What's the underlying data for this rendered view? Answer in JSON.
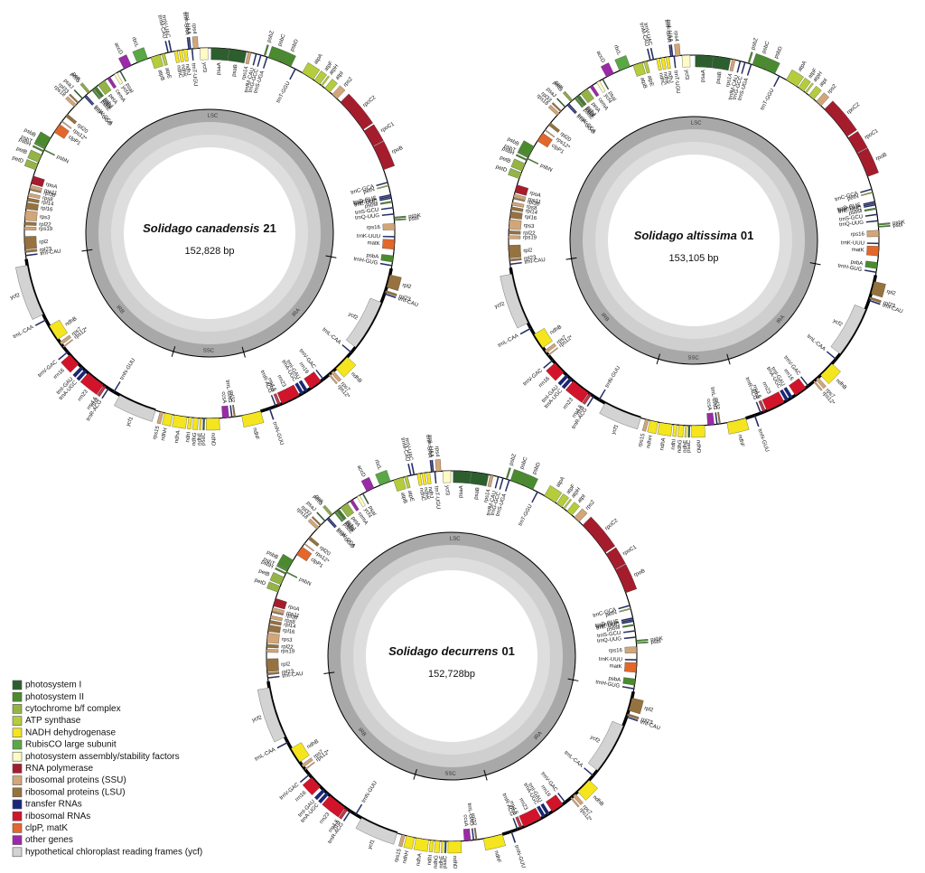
{
  "maps": [
    {
      "species": "Solidago canadensis",
      "accession": "21",
      "length": {
        "value": 152828,
        "label": "152,828 bp"
      }
    },
    {
      "species": "Solidago altissima",
      "accession": "01",
      "length": {
        "value": 153105,
        "label": "153,105 bp"
      }
    },
    {
      "species": "Solidago decurrens",
      "accession": "01",
      "length": {
        "value": 152728,
        "label": "152,728bp"
      }
    }
  ],
  "regions": [
    {
      "name": "LSC",
      "start": 111220,
      "end": 42875,
      "bold": false
    },
    {
      "name": "IRA",
      "start": 42875,
      "end": 69620,
      "bold": true
    },
    {
      "name": "SSC",
      "start": 69620,
      "end": 83627,
      "bold": false
    },
    {
      "name": "IRB",
      "start": 83627,
      "end": 111220,
      "bold": true
    }
  ],
  "genes": [
    {
      "name": "psaA",
      "start": 212,
      "end": 2547,
      "outer": false,
      "color": "#2c5f2d"
    },
    {
      "name": "psaB",
      "start": 2600,
      "end": 4882,
      "outer": false,
      "color": "#2c5f2d"
    },
    {
      "name": "rps14",
      "start": 5094,
      "end": 5519,
      "outer": false,
      "color": "#d2a679"
    },
    {
      "name": "trnfM-CAU",
      "start": 6155,
      "end": 6230,
      "outer": false,
      "color": "#19267a"
    },
    {
      "name": "trnG-GCC",
      "start": 6792,
      "end": 6870,
      "outer": false,
      "color": "#19267a"
    },
    {
      "name": "psbZ",
      "start": 7217,
      "end": 7429,
      "outer": true,
      "color": "#4b8b2f"
    },
    {
      "name": "trnS-UGA",
      "start": 7641,
      "end": 7730,
      "outer": false,
      "color": "#19267a"
    },
    {
      "name": "psbC",
      "start": 7853,
      "end": 9551,
      "outer": true,
      "color": "#4b8b2f"
    },
    {
      "name": "psbD",
      "start": 9600,
      "end": 11037,
      "outer": true,
      "color": "#4b8b2f"
    },
    {
      "name": "trnT-GGU",
      "start": 11674,
      "end": 11750,
      "outer": false,
      "color": "#19267a"
    },
    {
      "name": "atpA",
      "start": 12735,
      "end": 14433,
      "outer": true,
      "color": "#b5cc3c"
    },
    {
      "name": "atpF",
      "start": 14645,
      "end": 15494,
      "outer": true,
      "color": "#b5cc3c"
    },
    {
      "name": "atpH",
      "start": 15707,
      "end": 15919,
      "outer": true,
      "color": "#b5cc3c"
    },
    {
      "name": "atpI",
      "start": 16343,
      "end": 17192,
      "outer": true,
      "color": "#b5cc3c"
    },
    {
      "name": "rps2",
      "start": 17617,
      "end": 18466,
      "outer": true,
      "color": "#d2a679"
    },
    {
      "name": "rpoC2",
      "start": 19103,
      "end": 23772,
      "outer": true,
      "color": "#a51d2d"
    },
    {
      "name": "rpoC1",
      "start": 23984,
      "end": 26319,
      "outer": true,
      "color": "#a51d2d"
    },
    {
      "name": "rpoB",
      "start": 26400,
      "end": 29715,
      "outer": true,
      "color": "#a51d2d"
    },
    {
      "name": "trnC-GCA",
      "start": 31413,
      "end": 31490,
      "outer": false,
      "color": "#19267a"
    },
    {
      "name": "petN",
      "start": 31838,
      "end": 31930,
      "outer": false,
      "color": "#94b447"
    },
    {
      "name": "trnD-GUC",
      "start": 33111,
      "end": 33185,
      "outer": false,
      "color": "#19267a"
    },
    {
      "name": "trnY-GUA",
      "start": 33323,
      "end": 33400,
      "outer": false,
      "color": "#19267a"
    },
    {
      "name": "trnE-UUC",
      "start": 33536,
      "end": 33610,
      "outer": false,
      "color": "#19267a"
    },
    {
      "name": "psbM",
      "start": 33960,
      "end": 34172,
      "outer": false,
      "color": "#4b8b2f"
    },
    {
      "name": "trnS-GCU",
      "start": 34809,
      "end": 34895,
      "outer": false,
      "color": "#19267a"
    },
    {
      "name": "trnQ-UUG",
      "start": 35658,
      "end": 35730,
      "outer": false,
      "color": "#19267a"
    },
    {
      "name": "psbK",
      "start": 36083,
      "end": 36270,
      "outer": true,
      "color": "#4b8b2f"
    },
    {
      "name": "psbI",
      "start": 36422,
      "end": 36530,
      "outer": true,
      "color": "#4b8b2f"
    },
    {
      "name": "rps16",
      "start": 36932,
      "end": 37781,
      "outer": false,
      "color": "#d2a679"
    },
    {
      "name": "trnK-UUU",
      "start": 38630,
      "end": 38720,
      "outer": false,
      "color": "#19267a"
    },
    {
      "name": "matK",
      "start": 39054,
      "end": 40328,
      "outer": false,
      "color": "#e3672a"
    },
    {
      "name": "psbA",
      "start": 41177,
      "end": 42026,
      "outer": false,
      "color": "#4b8b2f"
    },
    {
      "name": "trnH-GUG",
      "start": 42450,
      "end": 42525,
      "outer": false,
      "color": "#19267a"
    },
    {
      "name": "rpl2",
      "start": 43724,
      "end": 45422,
      "outer": true,
      "color": "#96723f"
    },
    {
      "name": "rpl23",
      "start": 45846,
      "end": 46130,
      "outer": true,
      "color": "#96723f"
    },
    {
      "name": "trnI-CAU",
      "start": 46271,
      "end": 46345,
      "outer": true,
      "color": "#19267a"
    },
    {
      "name": "ycf2",
      "start": 47544,
      "end": 54336,
      "outer": false,
      "color": "#d3d3d3"
    },
    {
      "name": "trnL-CAA",
      "start": 55185,
      "end": 55265,
      "outer": false,
      "color": "#19267a"
    },
    {
      "name": "ndhB",
      "start": 56034,
      "end": 58157,
      "outer": true,
      "color": "#f4e51e"
    },
    {
      "name": "rps7",
      "start": 58581,
      "end": 59006,
      "outer": true,
      "color": "#d2a679"
    },
    {
      "name": "rps12*",
      "start": 59218,
      "end": 59430,
      "outer": true,
      "color": "#d2a679"
    },
    {
      "name": "trnV-GAC",
      "start": 60279,
      "end": 60350,
      "outer": false,
      "color": "#19267a"
    },
    {
      "name": "rrn16",
      "start": 60704,
      "end": 62402,
      "outer": false,
      "color": "#d2142b"
    },
    {
      "name": "trnI-GAU",
      "start": 62826,
      "end": 63251,
      "outer": false,
      "color": "#19267a"
    },
    {
      "name": "trnA-UGC",
      "start": 63463,
      "end": 63887,
      "outer": false,
      "color": "#19267a"
    },
    {
      "name": "rrn23",
      "start": 64100,
      "end": 66647,
      "outer": false,
      "color": "#d2142b"
    },
    {
      "name": "rrn4.5",
      "start": 66859,
      "end": 66960,
      "outer": false,
      "color": "#d2142b"
    },
    {
      "name": "rrn5",
      "start": 67071,
      "end": 67190,
      "outer": false,
      "color": "#d2142b"
    },
    {
      "name": "trnR-ACG",
      "start": 67496,
      "end": 67570,
      "outer": false,
      "color": "#19267a"
    },
    {
      "name": "trnN-GUU",
      "start": 68345,
      "end": 68420,
      "outer": true,
      "color": "#19267a"
    },
    {
      "name": "ndhF",
      "start": 69618,
      "end": 72165,
      "outer": true,
      "color": "#f4e51e"
    },
    {
      "name": "rpl32",
      "start": 73014,
      "end": 73200,
      "outer": false,
      "color": "#96723f"
    },
    {
      "name": "trnL-UAG",
      "start": 73439,
      "end": 73520,
      "outer": false,
      "color": "#19267a"
    },
    {
      "name": "ccsA",
      "start": 73863,
      "end": 74712,
      "outer": false,
      "color": "#9b2aa8"
    },
    {
      "name": "ndhD",
      "start": 75137,
      "end": 76835,
      "outer": true,
      "color": "#f4e51e"
    },
    {
      "name": "psaC",
      "start": 77047,
      "end": 77259,
      "outer": true,
      "color": "#2c5f2d"
    },
    {
      "name": "ndhE",
      "start": 77471,
      "end": 77684,
      "outer": true,
      "color": "#f4e51e"
    },
    {
      "name": "ndhG",
      "start": 77896,
      "end": 78533,
      "outer": true,
      "color": "#f4e51e"
    },
    {
      "name": "ndhI",
      "start": 78745,
      "end": 79169,
      "outer": true,
      "color": "#f4e51e"
    },
    {
      "name": "ndhA",
      "start": 79382,
      "end": 81080,
      "outer": true,
      "color": "#f4e51e"
    },
    {
      "name": "ndhH",
      "start": 81292,
      "end": 82353,
      "outer": true,
      "color": "#f4e51e"
    },
    {
      "name": "rps15",
      "start": 82565,
      "end": 82990,
      "outer": true,
      "color": "#d2a679"
    },
    {
      "name": "ycf1",
      "start": 83627,
      "end": 88721,
      "outer": true,
      "color": "#d3d3d3"
    },
    {
      "name": "trnN-GUU",
      "start": 89570,
      "end": 89645,
      "outer": false,
      "color": "#19267a"
    },
    {
      "name": "trnR-ACG",
      "start": 90419,
      "end": 90495,
      "outer": true,
      "color": "#19267a"
    },
    {
      "name": "rrn5",
      "start": 90843,
      "end": 90960,
      "outer": true,
      "color": "#d2142b"
    },
    {
      "name": "rrn4.5",
      "start": 91055,
      "end": 91160,
      "outer": true,
      "color": "#d2142b"
    },
    {
      "name": "rrn23",
      "start": 91268,
      "end": 93815,
      "outer": true,
      "color": "#d2142b"
    },
    {
      "name": "trnA-UGC",
      "start": 94027,
      "end": 94451,
      "outer": true,
      "color": "#19267a"
    },
    {
      "name": "trnI-GAU",
      "start": 94664,
      "end": 95088,
      "outer": true,
      "color": "#19267a"
    },
    {
      "name": "rrn16",
      "start": 95513,
      "end": 97211,
      "outer": true,
      "color": "#d2142b"
    },
    {
      "name": "trnV-GAC",
      "start": 97635,
      "end": 97710,
      "outer": true,
      "color": "#19267a"
    },
    {
      "name": "rps12*",
      "start": 98484,
      "end": 98600,
      "outer": false,
      "color": "#d2a679"
    },
    {
      "name": "rps7",
      "start": 98909,
      "end": 99333,
      "outer": false,
      "color": "#d2a679"
    },
    {
      "name": "ndhB",
      "start": 99758,
      "end": 101880,
      "outer": false,
      "color": "#f4e51e"
    },
    {
      "name": "trnL-CAA",
      "start": 102729,
      "end": 102810,
      "outer": true,
      "color": "#19267a"
    },
    {
      "name": "ycf2",
      "start": 103578,
      "end": 110370,
      "outer": true,
      "color": "#d3d3d3"
    },
    {
      "name": "trnI-CAU",
      "start": 111644,
      "end": 111720,
      "outer": false,
      "color": "#19267a"
    },
    {
      "name": "rpl23",
      "start": 112068,
      "end": 112350,
      "outer": false,
      "color": "#96723f"
    },
    {
      "name": "rpl2",
      "start": 112493,
      "end": 114191,
      "outer": false,
      "color": "#96723f"
    },
    {
      "name": "rps19",
      "start": 115040,
      "end": 115464,
      "outer": false,
      "color": "#d2a679"
    },
    {
      "name": "rpl22",
      "start": 115676,
      "end": 116101,
      "outer": false,
      "color": "#96723f"
    },
    {
      "name": "rps3",
      "start": 116313,
      "end": 117587,
      "outer": false,
      "color": "#d2a679"
    },
    {
      "name": "rpl16",
      "start": 117799,
      "end": 118648,
      "outer": false,
      "color": "#96723f"
    },
    {
      "name": "rpl14",
      "start": 118860,
      "end": 119285,
      "outer": false,
      "color": "#96723f"
    },
    {
      "name": "rps8",
      "start": 119497,
      "end": 119921,
      "outer": false,
      "color": "#d2a679"
    },
    {
      "name": "rpl36",
      "start": 120346,
      "end": 120460,
      "outer": false,
      "color": "#96723f"
    },
    {
      "name": "rps11",
      "start": 120558,
      "end": 120983,
      "outer": false,
      "color": "#d2a679"
    },
    {
      "name": "rpoA",
      "start": 121195,
      "end": 122256,
      "outer": false,
      "color": "#a51d2d"
    },
    {
      "name": "petD",
      "start": 123105,
      "end": 123954,
      "outer": true,
      "color": "#94b447"
    },
    {
      "name": "petB",
      "start": 124166,
      "end": 125228,
      "outer": true,
      "color": "#94b447"
    },
    {
      "name": "psbH",
      "start": 125652,
      "end": 125870,
      "outer": true,
      "color": "#4b8b2f"
    },
    {
      "name": "psbN",
      "start": 125900,
      "end": 126030,
      "outer": false,
      "color": "#4b8b2f"
    },
    {
      "name": "psbT",
      "start": 126100,
      "end": 126210,
      "outer": true,
      "color": "#4b8b2f"
    },
    {
      "name": "psbB",
      "start": 126289,
      "end": 127775,
      "outer": true,
      "color": "#4b8b2f"
    },
    {
      "name": "clpP1",
      "start": 128624,
      "end": 129897,
      "outer": false,
      "color": "#e3672a"
    },
    {
      "name": "rps12*",
      "start": 130322,
      "end": 130450,
      "outer": false,
      "color": "#d2a679"
    },
    {
      "name": "rpl20",
      "start": 131171,
      "end": 131595,
      "outer": false,
      "color": "#96723f"
    },
    {
      "name": "rps18",
      "start": 132869,
      "end": 133293,
      "outer": true,
      "color": "#d2a679"
    },
    {
      "name": "rpl33",
      "start": 133505,
      "end": 133718,
      "outer": true,
      "color": "#96723f"
    },
    {
      "name": "psaJ",
      "start": 134354,
      "end": 134480,
      "outer": true,
      "color": "#2c5f2d"
    },
    {
      "name": "trnP-UGG",
      "start": 134779,
      "end": 134855,
      "outer": false,
      "color": "#19267a"
    },
    {
      "name": "trnW-CCA",
      "start": 134991,
      "end": 135065,
      "outer": false,
      "color": "#19267a"
    },
    {
      "name": "petG",
      "start": 135416,
      "end": 135530,
      "outer": true,
      "color": "#94b447"
    },
    {
      "name": "petL",
      "start": 135628,
      "end": 135740,
      "outer": true,
      "color": "#94b447"
    },
    {
      "name": "psbE",
      "start": 136052,
      "end": 136300,
      "outer": false,
      "color": "#4b8b2f"
    },
    {
      "name": "psbF",
      "start": 136392,
      "end": 136510,
      "outer": false,
      "color": "#4b8b2f"
    },
    {
      "name": "psbL",
      "start": 136550,
      "end": 136670,
      "outer": false,
      "color": "#4b8b2f"
    },
    {
      "name": "psbJ",
      "start": 136720,
      "end": 136840,
      "outer": false,
      "color": "#4b8b2f"
    },
    {
      "name": "petA",
      "start": 137114,
      "end": 138175,
      "outer": false,
      "color": "#94b447"
    },
    {
      "name": "cemA",
      "start": 138599,
      "end": 139024,
      "outer": false,
      "color": "#9b2aa8"
    },
    {
      "name": "ycf4",
      "start": 139661,
      "end": 140085,
      "outer": false,
      "color": "#fffbc4"
    },
    {
      "name": "psaI",
      "start": 140510,
      "end": 140620,
      "outer": false,
      "color": "#2c5f2d"
    },
    {
      "name": "accD",
      "start": 141146,
      "end": 142208,
      "outer": true,
      "color": "#9b2aa8"
    },
    {
      "name": "rbcL",
      "start": 143057,
      "end": 144542,
      "outer": true,
      "color": "#5aa845"
    },
    {
      "name": "atpB",
      "start": 144967,
      "end": 146240,
      "outer": false,
      "color": "#b5cc3c"
    },
    {
      "name": "atpE",
      "start": 146453,
      "end": 146877,
      "outer": false,
      "color": "#b5cc3c"
    },
    {
      "name": "trnM-CAU",
      "start": 147302,
      "end": 147375,
      "outer": true,
      "color": "#19267a"
    },
    {
      "name": "trnV-UAC",
      "start": 147726,
      "end": 147800,
      "outer": true,
      "color": "#19267a"
    },
    {
      "name": "ndhC",
      "start": 148151,
      "end": 148575,
      "outer": false,
      "color": "#f4e51e"
    },
    {
      "name": "ndhK",
      "start": 148787,
      "end": 149212,
      "outer": false,
      "color": "#f4e51e"
    },
    {
      "name": "ndhJ",
      "start": 149424,
      "end": 149849,
      "outer": false,
      "color": "#f4e51e"
    },
    {
      "name": "trnF-GAA",
      "start": 150061,
      "end": 150135,
      "outer": true,
      "color": "#19267a"
    },
    {
      "name": "trnL-UAA",
      "start": 150273,
      "end": 150350,
      "outer": true,
      "color": "#19267a"
    },
    {
      "name": "trnT-UGU",
      "start": 150485,
      "end": 150560,
      "outer": false,
      "color": "#19267a"
    },
    {
      "name": "rps4",
      "start": 150698,
      "end": 151334,
      "outer": true,
      "color": "#d2a679"
    },
    {
      "name": "ycf3",
      "start": 151547,
      "end": 152608,
      "outer": false,
      "color": "#fffbc4"
    }
  ],
  "legend": [
    {
      "label": "photosystem I",
      "color": "#2c5f2d"
    },
    {
      "label": "photosystem II",
      "color": "#4b8b2f"
    },
    {
      "label": "cytochrome b/f complex",
      "color": "#94b447"
    },
    {
      "label": "ATP synthase",
      "color": "#b5cc3c"
    },
    {
      "label": "NADH dehydrogenase",
      "color": "#f4e51e"
    },
    {
      "label": "RubisCO large subunit",
      "color": "#5aa845"
    },
    {
      "label": "photosystem assembly/stability factors",
      "color": "#fffbc4"
    },
    {
      "label": "RNA polymerase",
      "color": "#a51d2d"
    },
    {
      "label": "ribosomal proteins (SSU)",
      "color": "#d2a679"
    },
    {
      "label": "ribosomal proteins (LSU)",
      "color": "#96723f"
    },
    {
      "label": "transfer RNAs",
      "color": "#19267a"
    },
    {
      "label": "ribosomal RNAs",
      "color": "#d2142b"
    },
    {
      "label": "clpP, matK",
      "color": "#e3672a"
    },
    {
      "label": "other genes",
      "color": "#9b2aa8"
    },
    {
      "label": "hypothetical chloroplast reading frames (ycf)",
      "color": "#d3d3d3"
    }
  ]
}
